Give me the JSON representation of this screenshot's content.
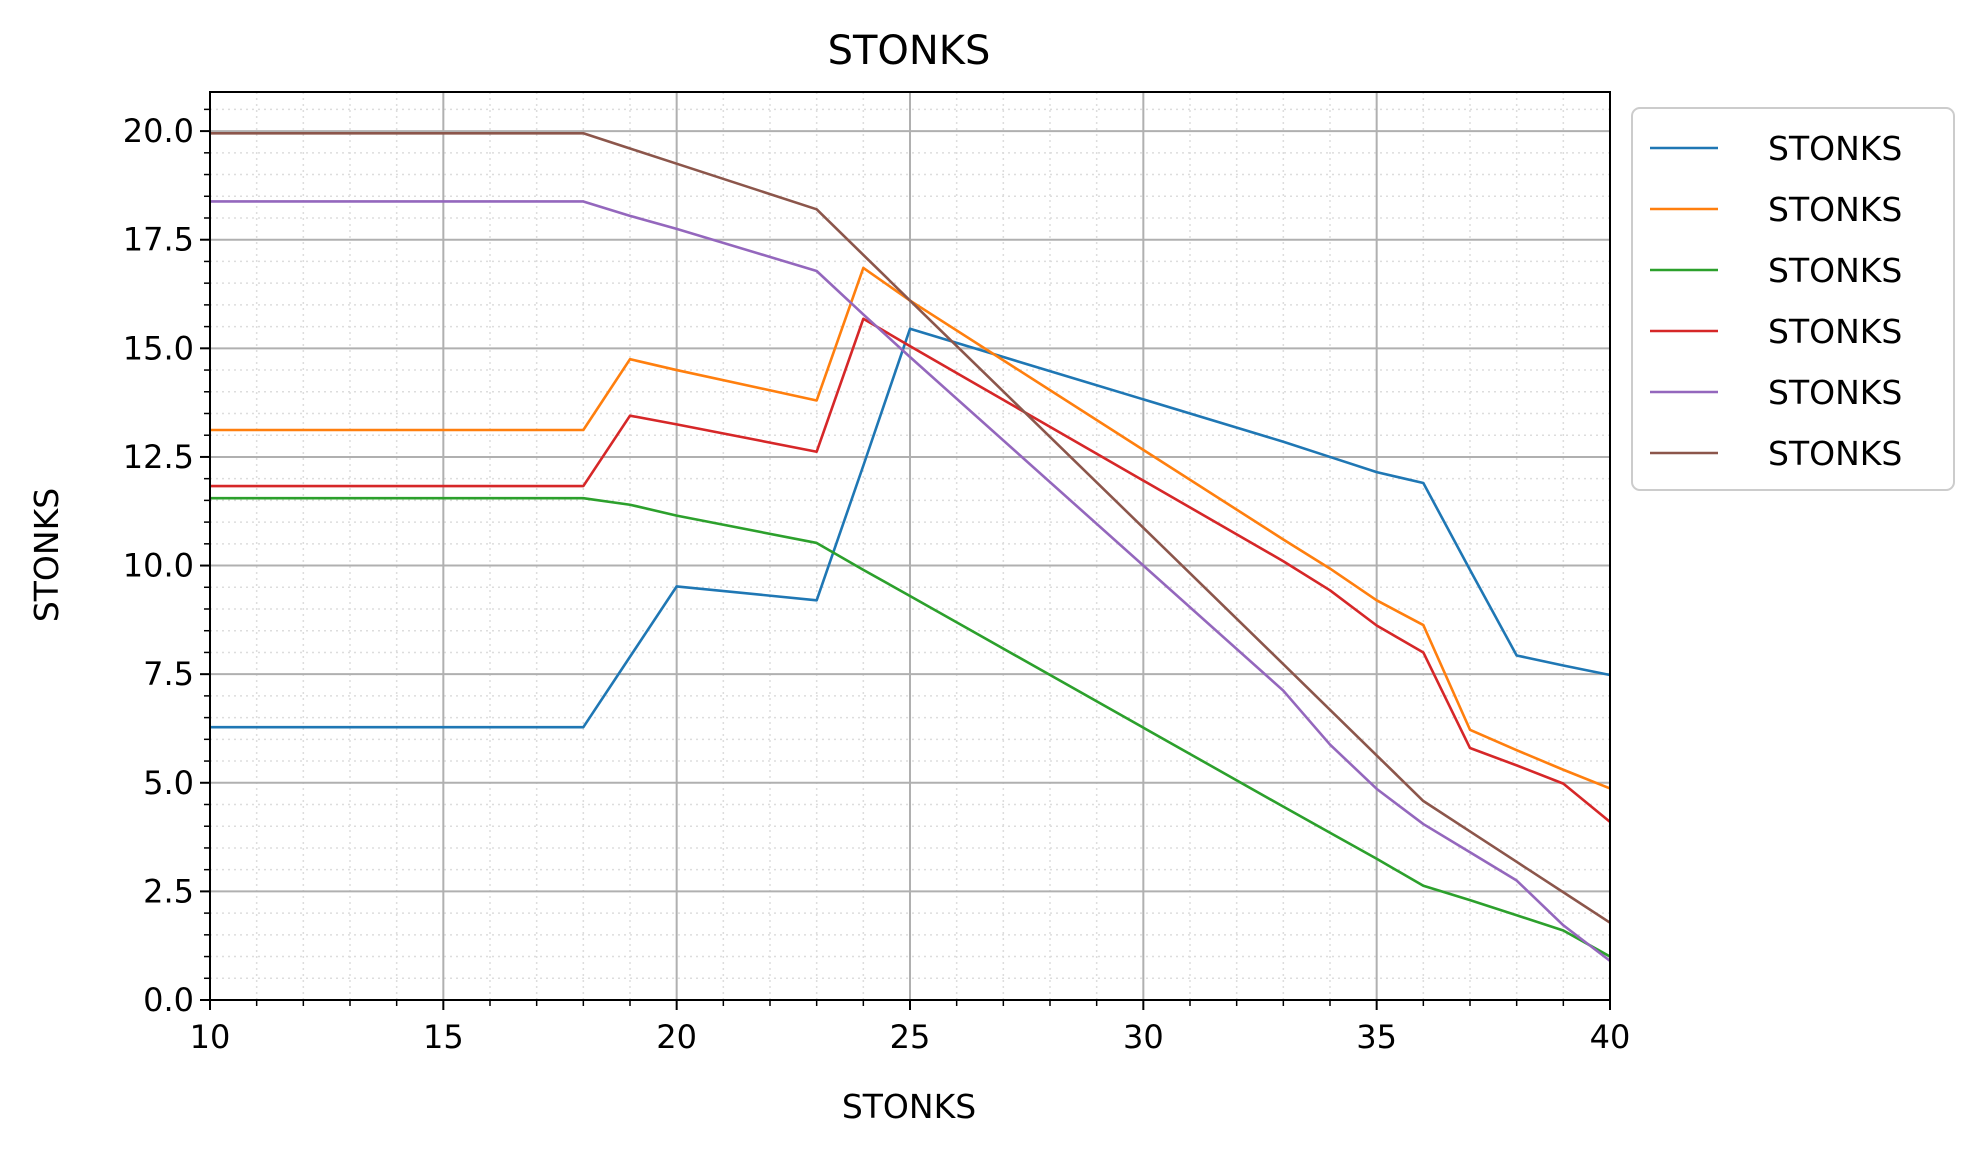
{
  "chart_data": {
    "type": "line",
    "title": "STONKS",
    "xlabel": "STONKS",
    "ylabel": "STONKS",
    "xlim": [
      10,
      40
    ],
    "ylim": [
      0,
      20.9
    ],
    "x_ticks": [
      "10",
      "15",
      "20",
      "25",
      "30",
      "35",
      "40"
    ],
    "y_ticks": [
      "0.0",
      "2.5",
      "5.0",
      "7.5",
      "10.0",
      "12.5",
      "15.0",
      "17.5",
      "20.0"
    ],
    "grid": true,
    "minor_grid": true,
    "legend_position": "outside-top-right",
    "x": [
      10,
      18,
      19,
      20,
      23,
      24,
      25,
      33,
      34,
      35,
      36,
      37,
      38,
      39,
      40
    ],
    "series": [
      {
        "name": "STONKS",
        "color": "#1f77b4",
        "values": [
          6.28,
          6.28,
          7.9,
          9.52,
          9.2,
          12.3,
          15.45,
          12.85,
          12.5,
          12.15,
          11.9,
          9.9,
          7.93,
          7.7,
          7.48
        ]
      },
      {
        "name": "STONKS",
        "color": "#ff7f0e",
        "values": [
          13.12,
          13.12,
          14.75,
          14.5,
          13.8,
          16.85,
          16.1,
          10.6,
          9.93,
          9.2,
          8.63,
          6.22,
          5.75,
          5.3,
          4.87
        ]
      },
      {
        "name": "STONKS",
        "color": "#2ca02c",
        "values": [
          11.55,
          11.55,
          11.4,
          11.15,
          10.52,
          9.9,
          9.3,
          4.45,
          3.85,
          3.25,
          2.63,
          2.3,
          1.95,
          1.6,
          1.0
        ]
      },
      {
        "name": "STONKS",
        "color": "#d62728",
        "values": [
          11.83,
          11.83,
          13.45,
          13.25,
          12.62,
          15.68,
          15.05,
          10.1,
          9.43,
          8.62,
          8.0,
          5.8,
          5.4,
          4.98,
          4.1
        ]
      },
      {
        "name": "STONKS",
        "color": "#9467bd",
        "values": [
          18.38,
          18.38,
          18.05,
          17.75,
          16.78,
          15.78,
          14.8,
          7.12,
          5.88,
          4.86,
          4.05,
          3.4,
          2.75,
          1.72,
          0.9
        ]
      },
      {
        "name": "STONKS",
        "color": "#8c564b",
        "values": [
          19.95,
          19.95,
          19.6,
          19.25,
          18.2,
          17.15,
          16.1,
          7.73,
          6.68,
          5.63,
          4.58,
          3.88,
          3.18,
          2.48,
          1.78
        ]
      }
    ]
  }
}
